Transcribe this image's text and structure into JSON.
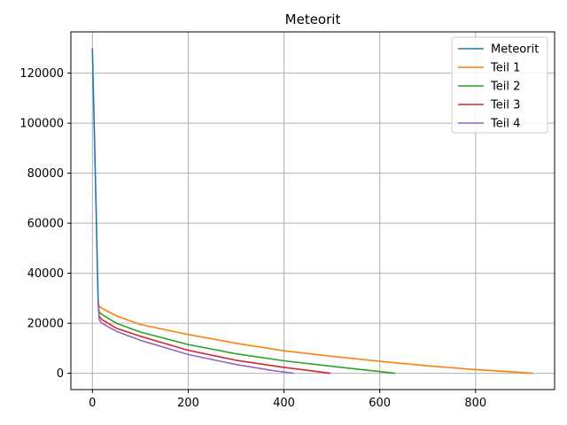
{
  "chart_data": {
    "type": "line",
    "title": "Meteorit",
    "xlabel": "",
    "ylabel": "",
    "xlim": [
      -45,
      965
    ],
    "ylim": [
      -6500,
      136500
    ],
    "x_ticks": [
      0,
      200,
      400,
      600,
      800
    ],
    "y_ticks": [
      0,
      20000,
      40000,
      60000,
      80000,
      100000,
      120000
    ],
    "grid": true,
    "legend_position": "top-right",
    "series": [
      {
        "name": "Meteorit",
        "color": "#1f77b4",
        "x": [
          0,
          2,
          4,
          6,
          8,
          10,
          12
        ],
        "y": [
          130000,
          113000,
          96500,
          79500,
          62500,
          45500,
          28500
        ]
      },
      {
        "name": "Teil 1",
        "color": "#ff7f0e",
        "x": [
          12,
          14,
          20,
          50,
          100,
          200,
          300,
          400,
          500,
          600,
          700,
          800,
          900,
          920
        ],
        "y": [
          28500,
          26800,
          26000,
          23000,
          19500,
          15500,
          12000,
          9000,
          6800,
          4800,
          3000,
          1500,
          300,
          0
        ]
      },
      {
        "name": "Teil 2",
        "color": "#2ca02c",
        "x": [
          12,
          14,
          20,
          50,
          100,
          200,
          300,
          400,
          500,
          600,
          632
        ],
        "y": [
          28500,
          24500,
          23500,
          20000,
          16500,
          11500,
          7800,
          5000,
          2800,
          700,
          0
        ]
      },
      {
        "name": "Teil 3",
        "color": "#d62728",
        "x": [
          12,
          14,
          20,
          50,
          100,
          200,
          300,
          400,
          470,
          497
        ],
        "y": [
          28500,
          22800,
          21500,
          18000,
          14800,
          9200,
          5200,
          2400,
          700,
          0
        ]
      },
      {
        "name": "Teil 4",
        "color": "#9467bd",
        "x": [
          12,
          14,
          20,
          50,
          100,
          200,
          300,
          380,
          420
        ],
        "y": [
          28500,
          21500,
          20000,
          16800,
          13200,
          7500,
          3500,
          1000,
          0
        ]
      }
    ]
  }
}
